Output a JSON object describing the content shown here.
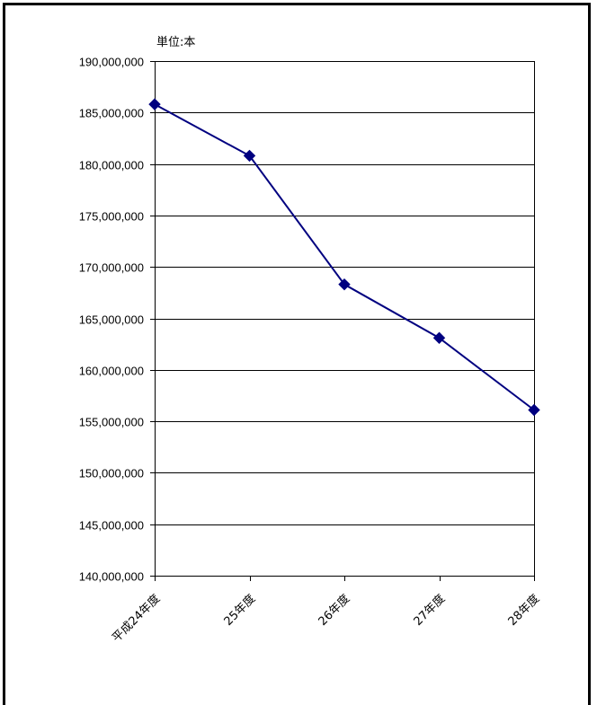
{
  "chart_data": {
    "type": "line",
    "title": "",
    "unit_label": "単位:本",
    "xlabel": "",
    "ylabel": "",
    "categories": [
      "平成24年度",
      "25年度",
      "26年度",
      "27年度",
      "28年度"
    ],
    "series": [
      {
        "values": [
          185800000,
          180800000,
          168300000,
          163100000,
          156100000
        ],
        "color": "#000080",
        "marker": "diamond"
      }
    ],
    "ylim": [
      140000000,
      190000000
    ],
    "y_ticks": [
      {
        "value": 190000000,
        "label": "190,000,000"
      },
      {
        "value": 185000000,
        "label": "185,000,000"
      },
      {
        "value": 180000000,
        "label": "180,000,000"
      },
      {
        "value": 175000000,
        "label": "175,000,000"
      },
      {
        "value": 170000000,
        "label": "170,000,000"
      },
      {
        "value": 165000000,
        "label": "165,000,000"
      },
      {
        "value": 160000000,
        "label": "160,000,000"
      },
      {
        "value": 155000000,
        "label": "155,000,000"
      },
      {
        "value": 150000000,
        "label": "150,000,000"
      },
      {
        "value": 145000000,
        "label": "145,000,000"
      },
      {
        "value": 140000000,
        "label": "140,000,000"
      }
    ],
    "grid": true,
    "legend": "none"
  }
}
